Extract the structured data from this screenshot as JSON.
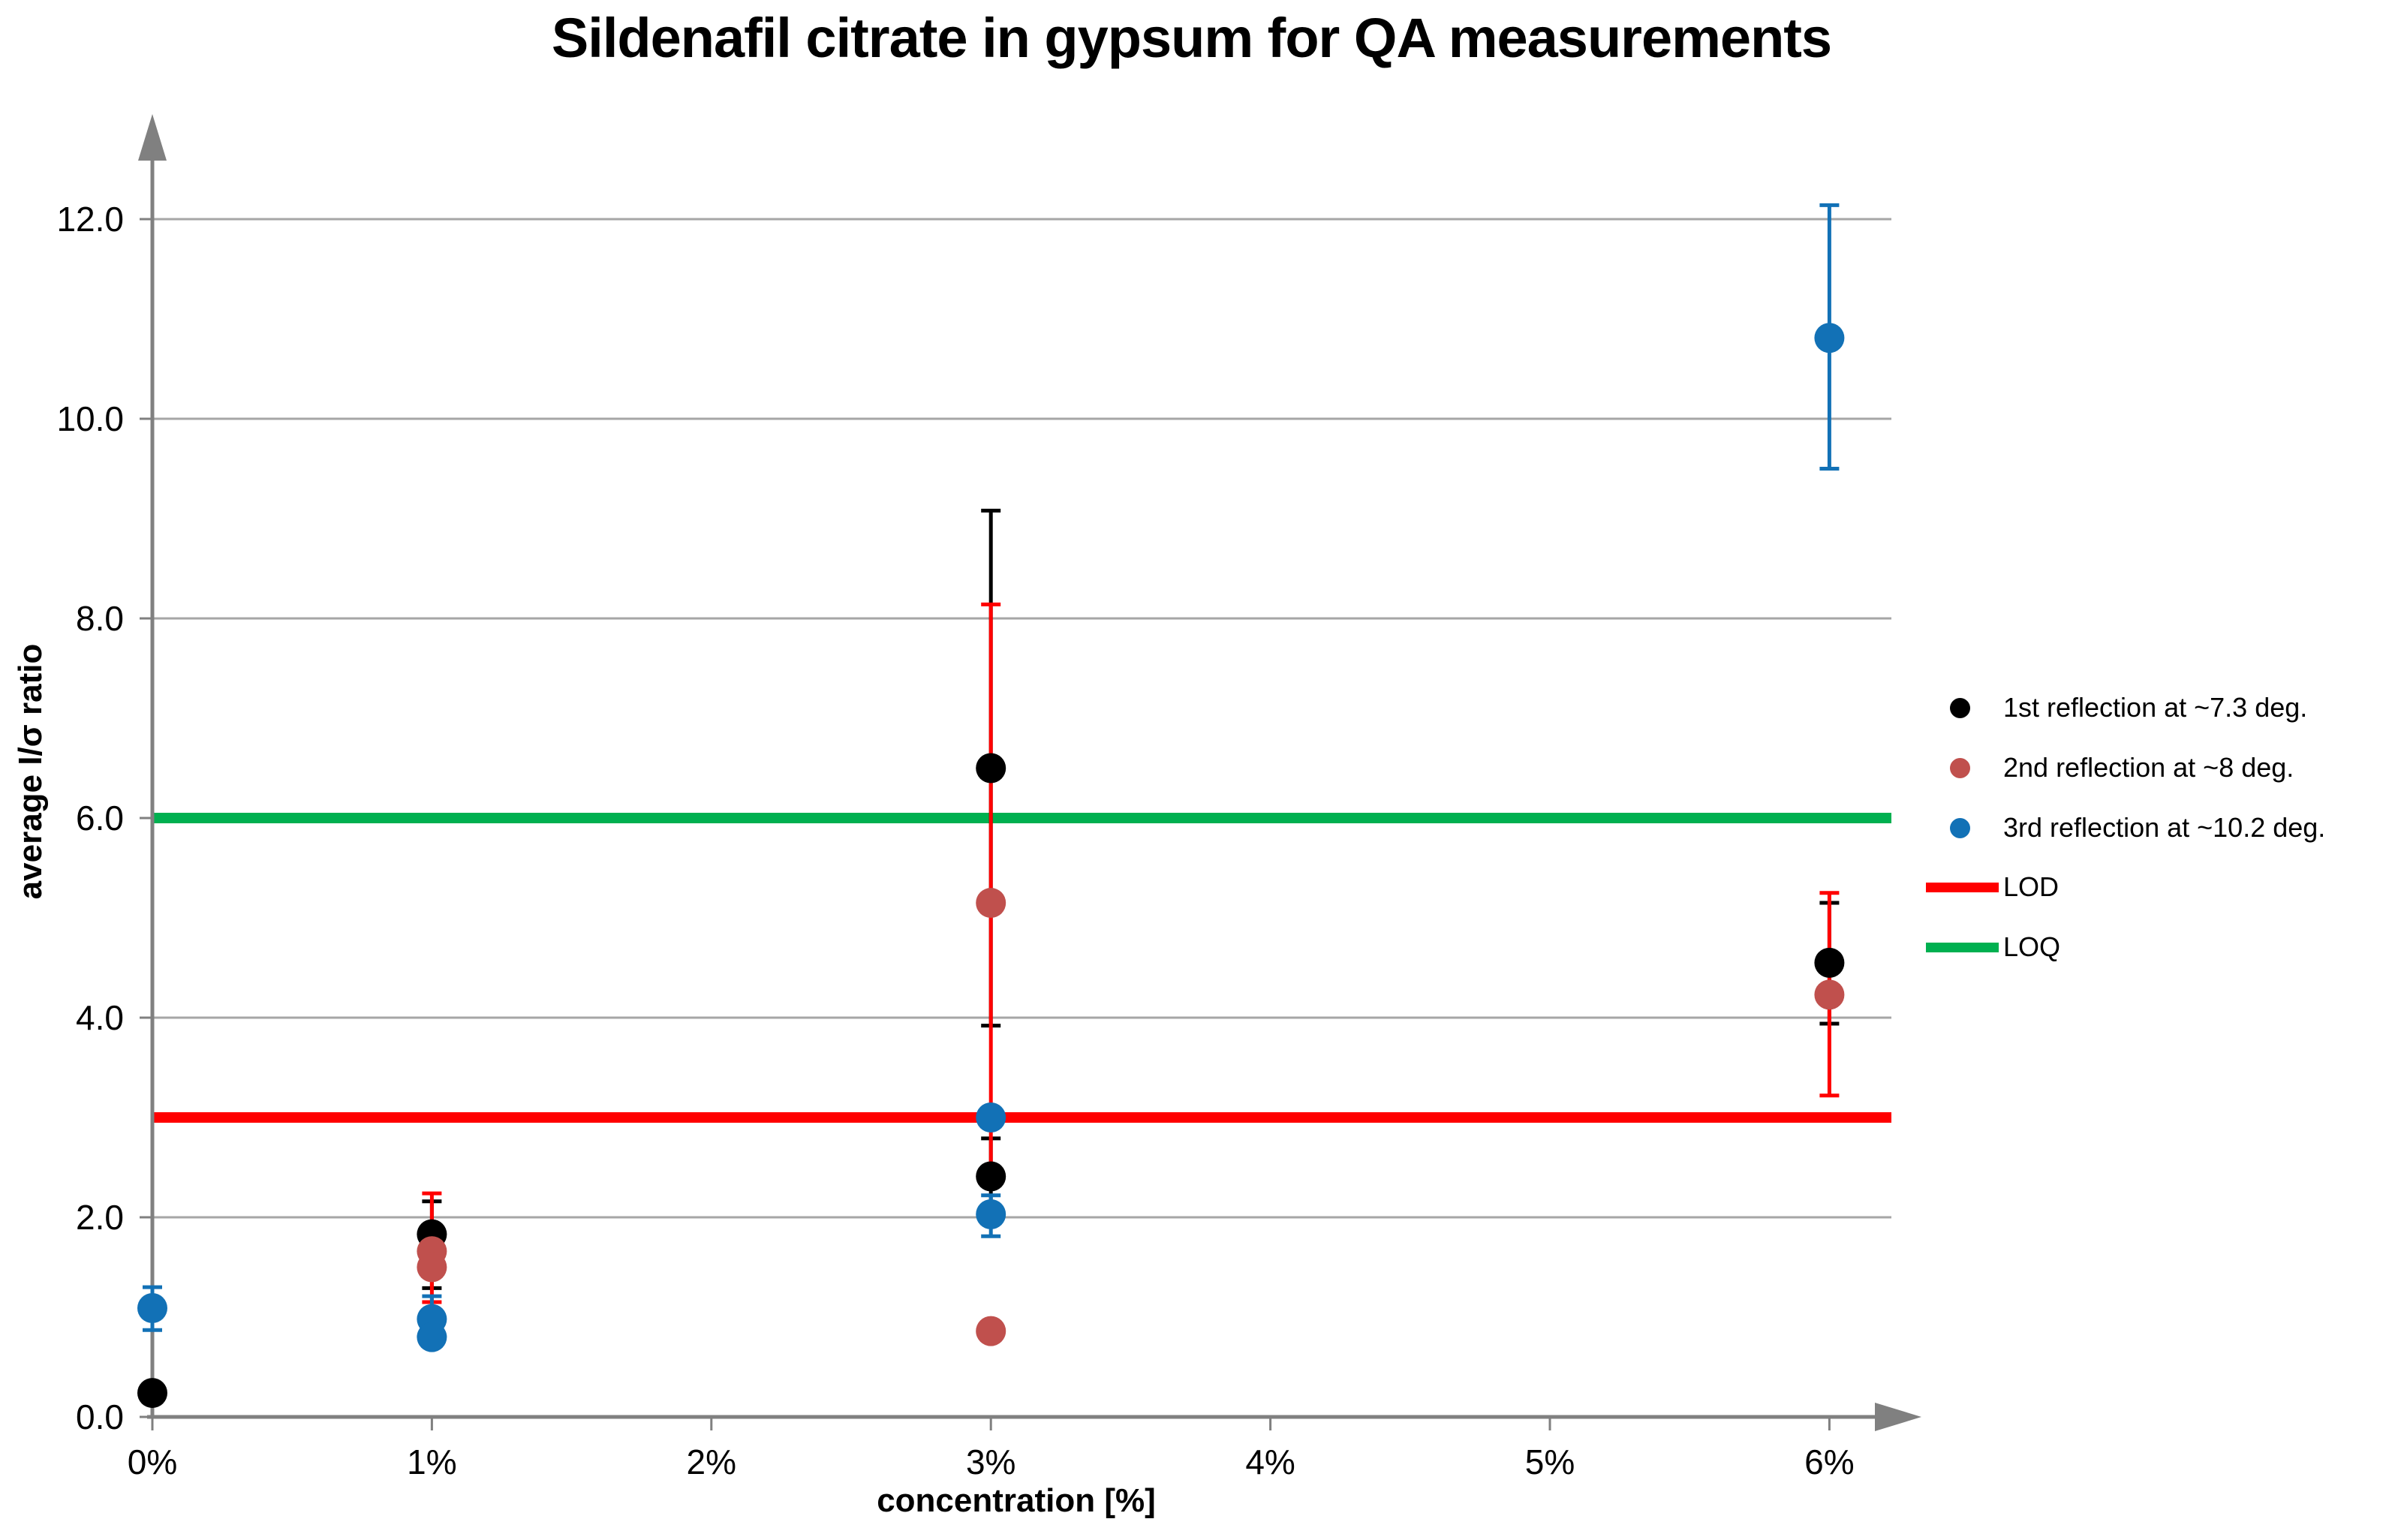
{
  "chart_data": {
    "type": "scatter",
    "title": "Sildenafil citrate in gypsum for QA measurements",
    "xlabel": "concentration [%]",
    "ylabel": "average I/σ ratio",
    "x_tick_labels": [
      "0%",
      "1%",
      "2%",
      "3%",
      "4%",
      "5%",
      "6%"
    ],
    "x_tick_values": [
      0,
      1,
      2,
      3,
      4,
      5,
      6
    ],
    "y_tick_labels": [
      "0.0",
      "2.0",
      "4.0",
      "6.0",
      "8.0",
      "10.0",
      "12.0"
    ],
    "y_tick_values": [
      0,
      2,
      4,
      6,
      8,
      10,
      12
    ],
    "xlim": [
      0,
      6.35
    ],
    "ylim": [
      0,
      13.0
    ],
    "grid": true,
    "legend_position": "right",
    "axis_color": "#808080",
    "grid_color": "#A6A6A6",
    "series": [
      {
        "name": "1st reflection at  ~7.3 deg.",
        "color": "#000000",
        "error_bar_color": "#000000",
        "points": [
          {
            "x": 0,
            "y": 0.24
          },
          {
            "x": 1,
            "y": 1.83,
            "err_lo": 1.29,
            "err_hi": 2.16
          },
          {
            "x": 3,
            "y": 6.5,
            "err_lo": 3.92,
            "err_hi": 9.08
          },
          {
            "x": 3,
            "y": 2.41,
            "err_lo": 2.03,
            "err_hi": 2.79
          },
          {
            "x": 6,
            "y": 4.55,
            "err_lo": 3.94,
            "err_hi": 5.15
          }
        ]
      },
      {
        "name": "2nd reflection at  ~8 deg.",
        "color": "#C0504D",
        "error_bar_color": "#FF0000",
        "points": [
          {
            "x": 1,
            "y": 1.66,
            "err_lo": 1.15,
            "err_hi": 2.24
          },
          {
            "x": 1,
            "y": 1.5
          },
          {
            "x": 3,
            "y": 5.15,
            "err_lo": 2.33,
            "err_hi": 8.14
          },
          {
            "x": 3,
            "y": 0.86
          },
          {
            "x": 6,
            "y": 4.23,
            "err_lo": 3.22,
            "err_hi": 5.25
          }
        ]
      },
      {
        "name": "3rd reflection at  ~10.2 deg.",
        "color": "#1271B6",
        "error_bar_color": "#1271B6",
        "points": [
          {
            "x": 0,
            "y": 1.09,
            "err_lo": 0.87,
            "err_hi": 1.3
          },
          {
            "x": 1,
            "y": 0.98,
            "err_lo": 0.78,
            "err_hi": 1.21
          },
          {
            "x": 1,
            "y": 0.8
          },
          {
            "x": 3,
            "y": 3.0
          },
          {
            "x": 3,
            "y": 2.03,
            "err_lo": 1.81,
            "err_hi": 2.22
          },
          {
            "x": 6,
            "y": 10.81,
            "err_lo": 9.5,
            "err_hi": 12.14
          }
        ]
      }
    ],
    "ref_lines": [
      {
        "label": "LOD",
        "value": 3.0,
        "color": "#FF0000"
      },
      {
        "label": "LOQ",
        "value": 6.0,
        "color": "#00B050"
      }
    ]
  }
}
